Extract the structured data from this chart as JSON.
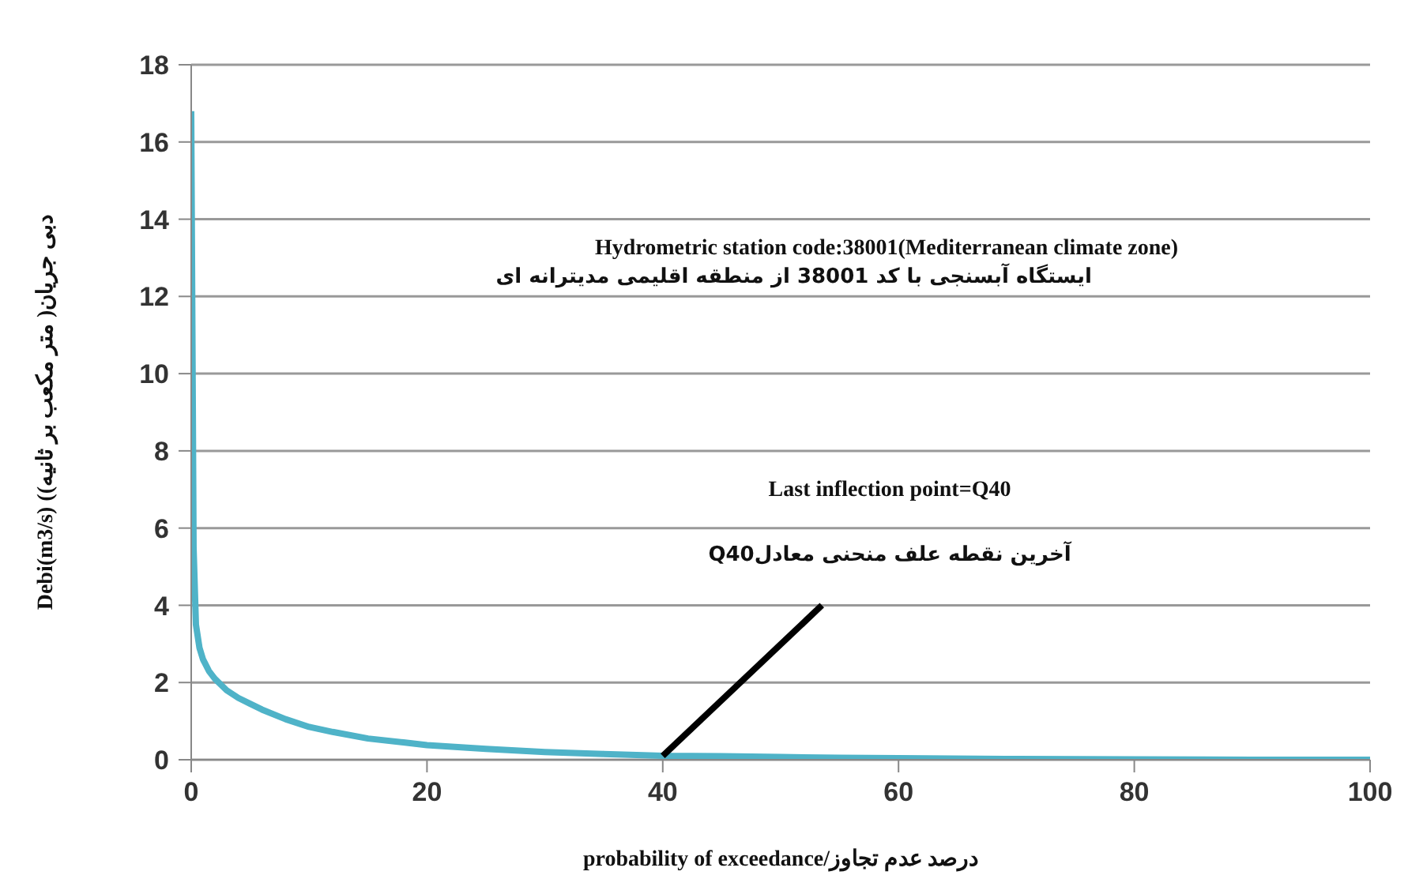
{
  "chart_data": {
    "type": "line",
    "xlabel": "probability of exceedance/درصد عدم تجاوز",
    "ylabel": "Debi(m3/s) (دبی جریان( متر مکعب بر ثانیه)",
    "x": [
      0,
      0.2,
      0.4,
      0.7,
      1,
      1.5,
      2,
      3,
      4,
      5,
      6,
      8,
      10,
      12,
      15,
      18,
      20,
      25,
      30,
      35,
      40,
      45,
      50,
      55,
      60,
      70,
      80,
      90,
      100
    ],
    "series": [
      {
        "color": "#4fb3c8",
        "values": [
          16.8,
          5.5,
          3.5,
          2.9,
          2.6,
          2.3,
          2.1,
          1.8,
          1.6,
          1.45,
          1.3,
          1.05,
          0.85,
          0.72,
          0.55,
          0.45,
          0.38,
          0.28,
          0.2,
          0.15,
          0.1,
          0.09,
          0.07,
          0.05,
          0.04,
          0.02,
          0.01,
          0,
          0
        ]
      },
      {
        "type": "line",
        "color": "#000000",
        "x": [
          40,
          53.5
        ],
        "values": [
          0.1,
          4
        ]
      }
    ],
    "xlim": [
      0,
      100
    ],
    "xticks": [
      0,
      20,
      40,
      60,
      80,
      100
    ],
    "ylim": [
      0,
      18
    ],
    "yticks": [
      0,
      2,
      4,
      6,
      8,
      10,
      12,
      14,
      16,
      18
    ],
    "grid": "y",
    "marker": "none",
    "line_style": "solid",
    "legend": false,
    "annotations": [
      "Hydrometric station code:38001(Mediterranean climate zone)",
      "ایستگاه آبسنجی با کد 38001 از منطقه اقلیمی مدیترانه ای",
      "Last inflection point=Q40",
      "آخرین نقطه علف منحنی معادلQ40"
    ]
  }
}
